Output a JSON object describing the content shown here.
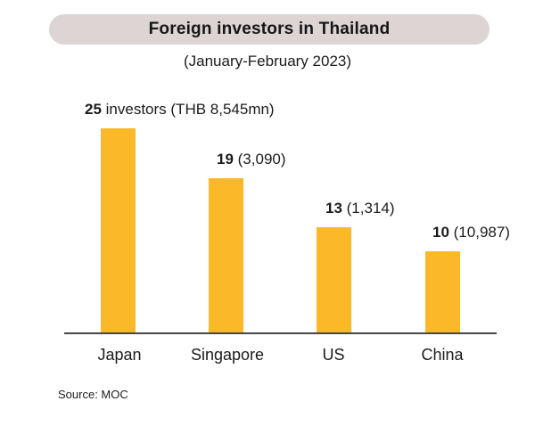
{
  "header": {
    "title": "Foreign investors in Thailand",
    "subtitle": "(January-February 2023)"
  },
  "source_note": "Source: MOC",
  "colors": {
    "bar": "#fbb829",
    "title_pill_bg": "#ddd4d4",
    "text": "#1b1b1b",
    "axis": "#474747"
  },
  "chart_data": {
    "type": "bar",
    "title": "Foreign investors in Thailand",
    "subtitle": "(January-February 2023)",
    "categories": [
      "Japan",
      "Singapore",
      "US",
      "China"
    ],
    "values": [
      25,
      19,
      13,
      10
    ],
    "value_unit": "investors",
    "thb_mn_values": [
      8545,
      3090,
      1314,
      10987
    ],
    "value_labels": [
      {
        "bold": "25",
        "rest": " investors (THB 8,545mn)"
      },
      {
        "bold": "19",
        "rest": " (3,090)"
      },
      {
        "bold": "13",
        "rest": " (1,314)"
      },
      {
        "bold": "10",
        "rest": " (10,987)"
      }
    ],
    "ylim": [
      0,
      25
    ],
    "grid": false,
    "legend": false,
    "bar_color": "#fbb829",
    "source": "Source: MOC"
  }
}
